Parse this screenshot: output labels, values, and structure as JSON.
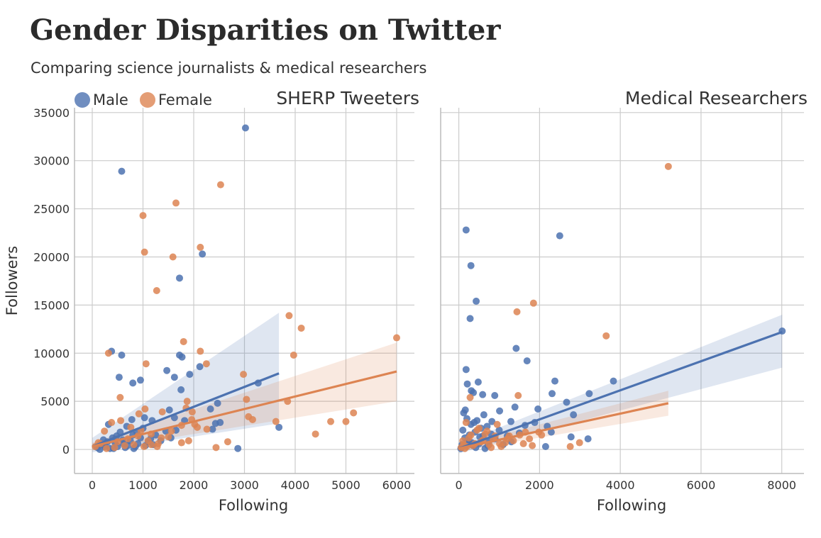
{
  "title": "Gender Disparities on Twitter",
  "subtitle": "Comparing science journalists & medical researchers",
  "legend": [
    {
      "name": "Male",
      "color": "#4c72b0"
    },
    {
      "name": "Female",
      "color": "#dd8452"
    }
  ],
  "chart_data": [
    {
      "type": "scatter",
      "panel_title": "SHERP Tweeters",
      "xlabel": "Following",
      "ylabel": "Followers",
      "xlim": [
        -350,
        6350
      ],
      "ylim": [
        -2500,
        35500
      ],
      "x_ticks": [
        0,
        1000,
        2000,
        3000,
        4000,
        5000,
        6000
      ],
      "y_ticks": [
        0,
        5000,
        10000,
        15000,
        20000,
        25000,
        30000,
        35000
      ],
      "grid": true,
      "legend_position": "top-left",
      "series": [
        {
          "name": "Male",
          "color": "#4c72b0",
          "points": [
            [
              3020,
              33400
            ],
            [
              580,
              28900
            ],
            [
              2170,
              20300
            ],
            [
              1720,
              17800
            ],
            [
              380,
              10200
            ],
            [
              580,
              9800
            ],
            [
              1720,
              9800
            ],
            [
              1770,
              9600
            ],
            [
              2120,
              8600
            ],
            [
              1470,
              8200
            ],
            [
              1920,
              7800
            ],
            [
              530,
              7500
            ],
            [
              1620,
              7500
            ],
            [
              950,
              7200
            ],
            [
              800,
              6900
            ],
            [
              3270,
              6900
            ],
            [
              1750,
              6200
            ],
            [
              2470,
              4800
            ],
            [
              2330,
              4200
            ],
            [
              1520,
              4100
            ],
            [
              3680,
              2300
            ],
            [
              2430,
              2700
            ],
            [
              2520,
              2800
            ],
            [
              2870,
              100
            ],
            [
              2370,
              2100
            ],
            [
              1620,
              3300
            ],
            [
              1820,
              3000
            ],
            [
              1030,
              3300
            ],
            [
              780,
              3100
            ],
            [
              1180,
              3000
            ],
            [
              200,
              500
            ],
            [
              300,
              800
            ],
            [
              100,
              200
            ],
            [
              400,
              1200
            ],
            [
              500,
              300
            ],
            [
              600,
              1000
            ],
            [
              700,
              400
            ],
            [
              800,
              1500
            ],
            [
              900,
              600
            ],
            [
              1000,
              2200
            ],
            [
              1100,
              800
            ],
            [
              1150,
              1100
            ],
            [
              1200,
              500
            ],
            [
              150,
              0
            ],
            [
              250,
              300
            ],
            [
              350,
              100
            ],
            [
              450,
              700
            ],
            [
              550,
              1800
            ],
            [
              650,
              200
            ],
            [
              750,
              900
            ],
            [
              850,
              300
            ],
            [
              950,
              1200
            ],
            [
              1050,
              400
            ],
            [
              1250,
              1500
            ],
            [
              1350,
              900
            ],
            [
              1450,
              1900
            ],
            [
              1550,
              1200
            ],
            [
              1650,
              2000
            ],
            [
              320,
              2600
            ],
            [
              480,
              1400
            ],
            [
              680,
              2400
            ],
            [
              880,
              1800
            ],
            [
              420,
              100
            ],
            [
              620,
              600
            ],
            [
              820,
              100
            ],
            [
              220,
              1000
            ]
          ],
          "fit": {
            "x": [
              0,
              3680
            ],
            "y": [
              300,
              7900
            ],
            "ci_upper": [
              1200,
              14200
            ],
            "ci_lower": [
              -300,
              2700
            ]
          }
        },
        {
          "name": "Female",
          "color": "#dd8452",
          "points": [
            [
              2530,
              27500
            ],
            [
              1650,
              25600
            ],
            [
              1000,
              24300
            ],
            [
              1030,
              20500
            ],
            [
              2130,
              21000
            ],
            [
              1590,
              20000
            ],
            [
              1270,
              16500
            ],
            [
              3880,
              13900
            ],
            [
              4120,
              12600
            ],
            [
              1800,
              11200
            ],
            [
              2130,
              10200
            ],
            [
              3970,
              9800
            ],
            [
              320,
              10000
            ],
            [
              1060,
              8900
            ],
            [
              2250,
              8900
            ],
            [
              2980,
              7800
            ],
            [
              6000,
              11600
            ],
            [
              550,
              5400
            ],
            [
              3850,
              5000
            ],
            [
              3040,
              5200
            ],
            [
              1870,
              5000
            ],
            [
              1850,
              4300
            ],
            [
              1970,
              3900
            ],
            [
              1040,
              4200
            ],
            [
              1380,
              3900
            ],
            [
              920,
              3700
            ],
            [
              3620,
              2900
            ],
            [
              4700,
              2900
            ],
            [
              5000,
              2900
            ],
            [
              5150,
              3800
            ],
            [
              4400,
              1600
            ],
            [
              3080,
              3400
            ],
            [
              3160,
              3100
            ],
            [
              2440,
              200
            ],
            [
              2670,
              800
            ],
            [
              1760,
              700
            ],
            [
              1900,
              900
            ],
            [
              2070,
              2300
            ],
            [
              2260,
              2100
            ],
            [
              2020,
              2600
            ],
            [
              1280,
              300
            ],
            [
              1160,
              500
            ],
            [
              1020,
              300
            ],
            [
              820,
              500
            ],
            [
              640,
              400
            ],
            [
              440,
              200
            ],
            [
              240,
              1900
            ],
            [
              380,
              2800
            ],
            [
              560,
              3000
            ],
            [
              760,
              2300
            ],
            [
              960,
              2000
            ],
            [
              1160,
              1600
            ],
            [
              1360,
              1200
            ],
            [
              1560,
              1900
            ],
            [
              1760,
              2500
            ],
            [
              1960,
              3100
            ],
            [
              160,
              600
            ],
            [
              280,
              100
            ],
            [
              500,
              800
            ],
            [
              700,
              1100
            ],
            [
              900,
              1400
            ],
            [
              1100,
              900
            ],
            [
              1300,
              600
            ],
            [
              1500,
              1300
            ],
            [
              60,
              300
            ],
            [
              120,
              700
            ]
          ],
          "fit": {
            "x": [
              0,
              6000
            ],
            "y": [
              300,
              8100
            ],
            "ci_upper": [
              700,
              11100
            ],
            "ci_lower": [
              -100,
              5000
            ]
          }
        }
      ]
    },
    {
      "type": "scatter",
      "panel_title": "Medical Researchers",
      "xlabel": "Following",
      "ylabel": "",
      "xlim": [
        -450,
        8550
      ],
      "ylim": [
        -2500,
        35500
      ],
      "x_ticks": [
        0,
        2000,
        4000,
        6000,
        8000
      ],
      "y_ticks": [
        0,
        5000,
        10000,
        15000,
        20000,
        25000,
        30000,
        35000
      ],
      "grid": true,
      "series": [
        {
          "name": "Male",
          "color": "#4c72b0",
          "points": [
            [
              180,
              22800
            ],
            [
              2500,
              22200
            ],
            [
              300,
              19100
            ],
            [
              430,
              15400
            ],
            [
              280,
              13600
            ],
            [
              1420,
              10500
            ],
            [
              1690,
              9200
            ],
            [
              180,
              8300
            ],
            [
              3830,
              7100
            ],
            [
              2380,
              7100
            ],
            [
              480,
              7000
            ],
            [
              210,
              6800
            ],
            [
              310,
              6100
            ],
            [
              2670,
              4900
            ],
            [
              3230,
              5800
            ],
            [
              2310,
              5800
            ],
            [
              8010,
              12300
            ],
            [
              890,
              5600
            ],
            [
              360,
              5900
            ],
            [
              590,
              5700
            ],
            [
              1390,
              4400
            ],
            [
              1960,
              4200
            ],
            [
              1010,
              4000
            ],
            [
              2840,
              3600
            ],
            [
              1880,
              2800
            ],
            [
              1290,
              2900
            ],
            [
              1640,
              2500
            ],
            [
              2190,
              2400
            ],
            [
              2780,
              1300
            ],
            [
              2290,
              1800
            ],
            [
              3200,
              1100
            ],
            [
              2150,
              300
            ],
            [
              100,
              2000
            ],
            [
              150,
              1200
            ],
            [
              200,
              3200
            ],
            [
              250,
              800
            ],
            [
              300,
              2600
            ],
            [
              350,
              400
            ],
            [
              400,
              1800
            ],
            [
              450,
              3000
            ],
            [
              500,
              600
            ],
            [
              550,
              2200
            ],
            [
              600,
              1400
            ],
            [
              650,
              100
            ],
            [
              700,
              2400
            ],
            [
              750,
              900
            ],
            [
              800,
              1600
            ],
            [
              900,
              1100
            ],
            [
              1000,
              2000
            ],
            [
              1100,
              500
            ],
            [
              1200,
              1400
            ],
            [
              1300,
              800
            ],
            [
              1500,
              1700
            ],
            [
              50,
              100
            ],
            [
              80,
              500
            ],
            [
              120,
              3800
            ],
            [
              160,
              4100
            ],
            [
              220,
              900
            ],
            [
              260,
              1500
            ],
            [
              320,
              700
            ],
            [
              380,
              2800
            ],
            [
              420,
              200
            ],
            [
              520,
              1300
            ],
            [
              620,
              3600
            ],
            [
              720,
              400
            ],
            [
              820,
              2900
            ]
          ],
          "fit": {
            "x": [
              0,
              8010
            ],
            "y": [
              100,
              12200
            ],
            "ci_upper": [
              600,
              14000
            ],
            "ci_lower": [
              -400,
              8500
            ]
          }
        },
        {
          "name": "Female",
          "color": "#dd8452",
          "points": [
            [
              5190,
              29400
            ],
            [
              1850,
              15200
            ],
            [
              1440,
              14300
            ],
            [
              3650,
              11800
            ],
            [
              280,
              5400
            ],
            [
              1470,
              5600
            ],
            [
              2990,
              700
            ],
            [
              2760,
              300
            ],
            [
              1980,
              1800
            ],
            [
              1510,
              1500
            ],
            [
              1820,
              400
            ],
            [
              1600,
              600
            ],
            [
              1200,
              1100
            ],
            [
              1010,
              600
            ],
            [
              900,
              1400
            ],
            [
              800,
              200
            ],
            [
              700,
              1900
            ],
            [
              600,
              1000
            ],
            [
              500,
              2200
            ],
            [
              400,
              600
            ],
            [
              300,
              1500
            ],
            [
              200,
              300
            ],
            [
              100,
              900
            ],
            [
              150,
              100
            ],
            [
              250,
              1200
            ],
            [
              350,
              400
            ],
            [
              450,
              2000
            ],
            [
              550,
              800
            ],
            [
              650,
              1600
            ],
            [
              750,
              500
            ],
            [
              850,
              1100
            ],
            [
              950,
              2600
            ],
            [
              1050,
              300
            ],
            [
              1150,
              700
            ],
            [
              1250,
              1400
            ],
            [
              1350,
              900
            ],
            [
              1650,
              1800
            ],
            [
              1750,
              1100
            ],
            [
              2050,
              1500
            ],
            [
              60,
              200
            ],
            [
              120,
              500
            ],
            [
              180,
              2800
            ]
          ],
          "fit": {
            "x": [
              0,
              5190
            ],
            "y": [
              100,
              4800
            ],
            "ci_upper": [
              400,
              6100
            ],
            "ci_lower": [
              -200,
              3500
            ]
          }
        }
      ]
    }
  ]
}
